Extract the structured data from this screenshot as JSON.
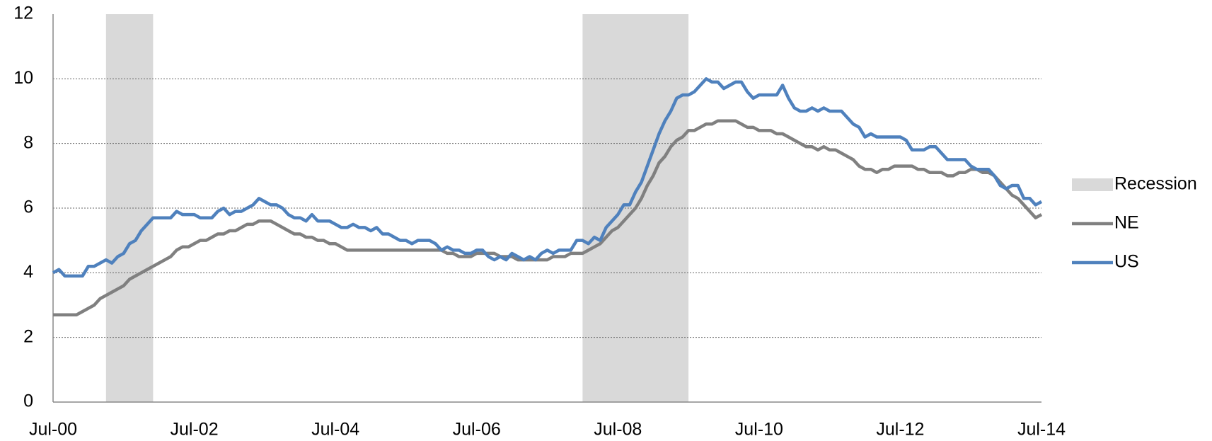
{
  "chart_data": {
    "type": "line",
    "categories": [
      "Jul-00",
      null,
      null,
      null,
      null,
      null,
      null,
      null,
      null,
      null,
      null,
      null,
      null,
      null,
      null,
      null,
      null,
      null,
      null,
      null,
      null,
      null,
      null,
      null,
      "Jul-02",
      null,
      null,
      null,
      null,
      null,
      null,
      null,
      null,
      null,
      null,
      null,
      null,
      null,
      null,
      null,
      null,
      null,
      null,
      null,
      null,
      null,
      null,
      null,
      "Jul-04",
      null,
      null,
      null,
      null,
      null,
      null,
      null,
      null,
      null,
      null,
      null,
      null,
      null,
      null,
      null,
      null,
      null,
      null,
      null,
      null,
      null,
      null,
      null,
      "Jul-06",
      null,
      null,
      null,
      null,
      null,
      null,
      null,
      null,
      null,
      null,
      null,
      null,
      null,
      null,
      null,
      null,
      null,
      null,
      null,
      null,
      null,
      null,
      null,
      "Jul-08",
      null,
      null,
      null,
      null,
      null,
      null,
      null,
      null,
      null,
      null,
      null,
      null,
      null,
      null,
      null,
      null,
      null,
      null,
      null,
      null,
      null,
      null,
      null,
      "Jul-10",
      null,
      null,
      null,
      null,
      null,
      null,
      null,
      null,
      null,
      null,
      null,
      null,
      null,
      null,
      null,
      null,
      null,
      null,
      null,
      null,
      null,
      null,
      null,
      "Jul-12",
      null,
      null,
      null,
      null,
      null,
      null,
      null,
      null,
      null,
      null,
      null,
      null,
      null,
      null,
      null,
      null,
      null,
      null,
      null,
      null,
      null,
      null,
      null,
      "Jul-14"
    ],
    "series": [
      {
        "name": "Recession",
        "color": "#d9d9d9",
        "periods": [
          [
            9,
            17
          ],
          [
            90,
            108
          ]
        ]
      },
      {
        "name": "NE",
        "color": "#808080",
        "values": [
          2.7,
          2.7,
          2.7,
          2.7,
          2.7,
          2.8,
          2.9,
          3.0,
          3.2,
          3.3,
          3.4,
          3.5,
          3.6,
          3.8,
          3.9,
          4.0,
          4.1,
          4.2,
          4.3,
          4.4,
          4.5,
          4.7,
          4.8,
          4.8,
          4.9,
          5.0,
          5.0,
          5.1,
          5.2,
          5.2,
          5.3,
          5.3,
          5.4,
          5.5,
          5.5,
          5.6,
          5.6,
          5.6,
          5.5,
          5.4,
          5.3,
          5.2,
          5.2,
          5.1,
          5.1,
          5.0,
          5.0,
          4.9,
          4.9,
          4.8,
          4.7,
          4.7,
          4.7,
          4.7,
          4.7,
          4.7,
          4.7,
          4.7,
          4.7,
          4.7,
          4.7,
          4.7,
          4.7,
          4.7,
          4.7,
          4.7,
          4.7,
          4.6,
          4.6,
          4.5,
          4.5,
          4.5,
          4.6,
          4.6,
          4.6,
          4.6,
          4.5,
          4.5,
          4.5,
          4.4,
          4.4,
          4.4,
          4.4,
          4.4,
          4.4,
          4.5,
          4.5,
          4.5,
          4.6,
          4.6,
          4.6,
          4.7,
          4.8,
          4.9,
          5.1,
          5.3,
          5.4,
          5.6,
          5.8,
          6.0,
          6.3,
          6.7,
          7.0,
          7.4,
          7.6,
          7.9,
          8.1,
          8.2,
          8.4,
          8.4,
          8.5,
          8.6,
          8.6,
          8.7,
          8.7,
          8.7,
          8.7,
          8.6,
          8.5,
          8.5,
          8.4,
          8.4,
          8.4,
          8.3,
          8.3,
          8.2,
          8.1,
          8.0,
          7.9,
          7.9,
          7.8,
          7.9,
          7.8,
          7.8,
          7.7,
          7.6,
          7.5,
          7.3,
          7.2,
          7.2,
          7.1,
          7.2,
          7.2,
          7.3,
          7.3,
          7.3,
          7.3,
          7.2,
          7.2,
          7.1,
          7.1,
          7.1,
          7.0,
          7.0,
          7.1,
          7.1,
          7.2,
          7.2,
          7.1,
          7.1,
          7.0,
          6.8,
          6.6,
          6.4,
          6.3,
          6.1,
          5.9,
          5.7,
          5.8
        ]
      },
      {
        "name": "US",
        "color": "#4f81bd",
        "values": [
          4.0,
          4.1,
          3.9,
          3.9,
          3.9,
          3.9,
          4.2,
          4.2,
          4.3,
          4.4,
          4.3,
          4.5,
          4.6,
          4.9,
          5.0,
          5.3,
          5.5,
          5.7,
          5.7,
          5.7,
          5.7,
          5.9,
          5.8,
          5.8,
          5.8,
          5.7,
          5.7,
          5.7,
          5.9,
          6.0,
          5.8,
          5.9,
          5.9,
          6.0,
          6.1,
          6.3,
          6.2,
          6.1,
          6.1,
          6.0,
          5.8,
          5.7,
          5.7,
          5.6,
          5.8,
          5.6,
          5.6,
          5.6,
          5.5,
          5.4,
          5.4,
          5.5,
          5.4,
          5.4,
          5.3,
          5.4,
          5.2,
          5.2,
          5.1,
          5.0,
          5.0,
          4.9,
          5.0,
          5.0,
          5.0,
          4.9,
          4.7,
          4.8,
          4.7,
          4.7,
          4.6,
          4.6,
          4.7,
          4.7,
          4.5,
          4.4,
          4.5,
          4.4,
          4.6,
          4.5,
          4.4,
          4.5,
          4.4,
          4.6,
          4.7,
          4.6,
          4.7,
          4.7,
          4.7,
          5.0,
          5.0,
          4.9,
          5.1,
          5.0,
          5.4,
          5.6,
          5.8,
          6.1,
          6.1,
          6.5,
          6.8,
          7.3,
          7.8,
          8.3,
          8.7,
          9.0,
          9.4,
          9.5,
          9.5,
          9.6,
          9.8,
          10.0,
          9.9,
          9.9,
          9.7,
          9.8,
          9.9,
          9.9,
          9.6,
          9.4,
          9.5,
          9.5,
          9.5,
          9.5,
          9.8,
          9.4,
          9.1,
          9.0,
          9.0,
          9.1,
          9.0,
          9.1,
          9.0,
          9.0,
          9.0,
          8.8,
          8.6,
          8.5,
          8.2,
          8.3,
          8.2,
          8.2,
          8.2,
          8.2,
          8.2,
          8.1,
          7.8,
          7.8,
          7.8,
          7.9,
          7.9,
          7.7,
          7.5,
          7.5,
          7.5,
          7.5,
          7.3,
          7.2,
          7.2,
          7.2,
          7.0,
          6.7,
          6.6,
          6.7,
          6.7,
          6.3,
          6.3,
          6.1,
          6.2
        ]
      }
    ],
    "ylim": [
      0,
      12
    ],
    "yticks": [
      0,
      2,
      4,
      6,
      8,
      10,
      12
    ],
    "grid": true,
    "legend": "right"
  }
}
